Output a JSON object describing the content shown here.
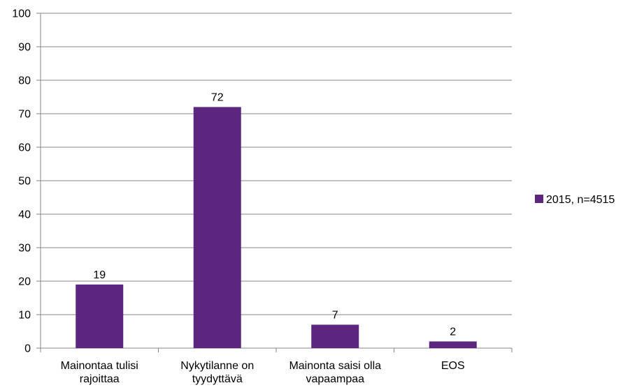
{
  "chart_data": {
    "type": "bar",
    "categories": [
      [
        "Mainontaa tulisi",
        "rajoittaa"
      ],
      [
        "Nykytilanne on",
        "tyydyttävä"
      ],
      [
        "Mainonta saisi olla",
        "vapaampaa"
      ],
      [
        "EOS"
      ]
    ],
    "series": [
      {
        "name": "2015, n=4515",
        "values": [
          19,
          72,
          7,
          2
        ],
        "color": "#5b2580"
      }
    ],
    "data_labels": [
      "19",
      "72",
      "7",
      "2"
    ],
    "yticks": [
      "0",
      "10",
      "20",
      "30",
      "40",
      "50",
      "60",
      "70",
      "80",
      "90",
      "100"
    ],
    "ylim": [
      0,
      100
    ],
    "title": "",
    "xlabel": "",
    "ylabel": "",
    "grid": true,
    "legend_position": "right",
    "gridline_color": "#868686",
    "axis_color": "#868686"
  }
}
